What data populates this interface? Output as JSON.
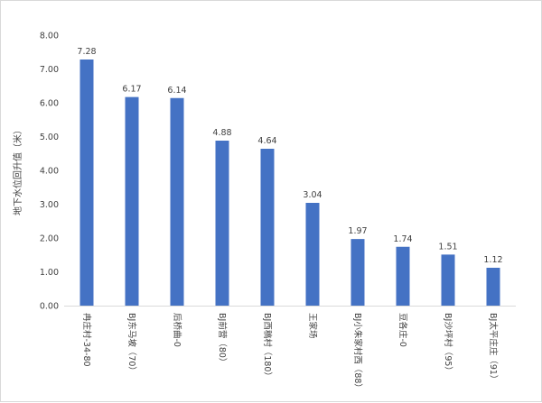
{
  "chart_data": {
    "type": "bar",
    "title": "",
    "xlabel": "",
    "ylabel": "地下水位回升值（米）",
    "ylim": [
      0,
      8
    ],
    "ytick_step": 1,
    "ytick_labels": [
      "0.00",
      "1.00",
      "2.00",
      "3.00",
      "4.00",
      "5.00",
      "6.00",
      "7.00",
      "8.00"
    ],
    "grid": false,
    "legend": "none",
    "bar_color": "#4472c4",
    "categories": [
      "冉庄村-34-80",
      "BJ东马坡（70）",
      "后桥曲-0",
      "BJ前营（80）",
      "BJ西稿村（180）",
      "王家场",
      "BJ小朱家村西（88）",
      "豆各庄-0",
      "BJ沙坪村（95）",
      "BJ太平庄庄（91）"
    ],
    "values": [
      7.28,
      6.17,
      6.14,
      4.88,
      4.64,
      3.04,
      1.97,
      1.74,
      1.51,
      1.12
    ],
    "value_labels": [
      "7.28",
      "6.17",
      "6.14",
      "4.88",
      "4.64",
      "3.04",
      "1.97",
      "1.74",
      "1.51",
      "1.12"
    ]
  }
}
